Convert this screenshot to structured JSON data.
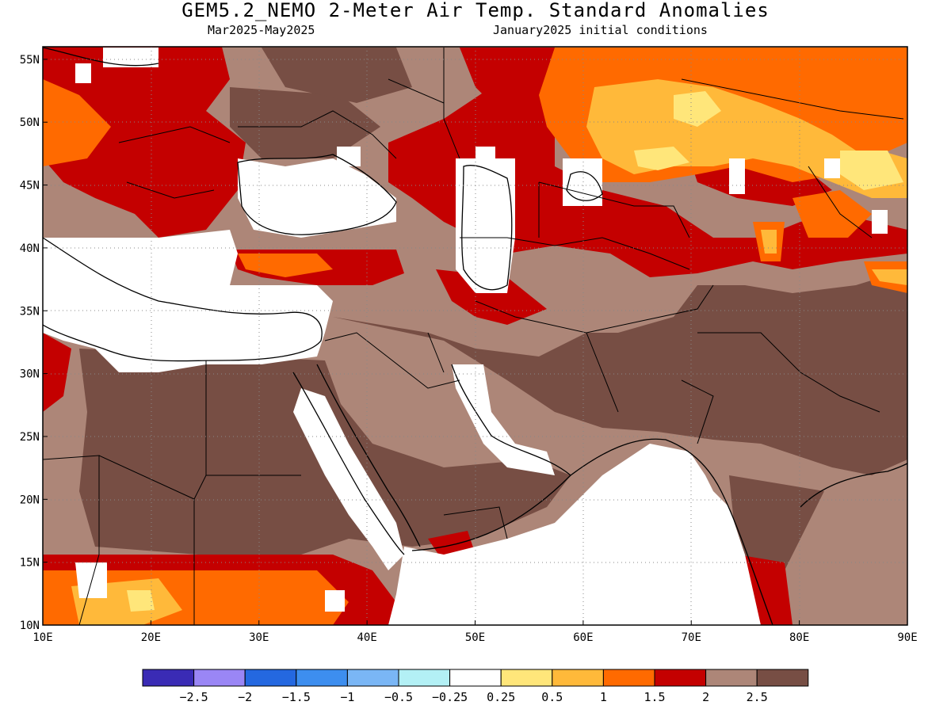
{
  "header": {
    "title": "GEM5.2_NEMO 2-Meter Air Temp. Standard Anomalies",
    "period": "Mar2025-May2025",
    "init": "January2025 initial conditions"
  },
  "map": {
    "lon_range": [
      10,
      90
    ],
    "lat_range": [
      10,
      56
    ],
    "lon_ticks": [
      "10E",
      "20E",
      "30E",
      "40E",
      "50E",
      "60E",
      "70E",
      "80E",
      "90E"
    ],
    "lat_ticks": [
      "10N",
      "15N",
      "20N",
      "25N",
      "30N",
      "35N",
      "40N",
      "45N",
      "50N",
      "55N"
    ],
    "grid": true,
    "palette": {
      "lt_-2.5": "#3a2bb5",
      "-2.5_-2": "#9a86f5",
      "-2_-1.5": "#2468e0",
      "-1.5_-1": "#3d8eef",
      "-1_-0.5": "#7ab6f5",
      "-0.5_-0.25": "#b3f0f5",
      "neutral": "#ffffff",
      "0.25_0.5": "#ffe67a",
      "0.5_1": "#ffb93a",
      "1_1.5": "#ff6a00",
      "1.5_2": "#c40000",
      "2_2.5": "#ad8678",
      "gt_2.5": "#774e44"
    }
  },
  "legend": {
    "colors": [
      "#3a2bb5",
      "#9a86f5",
      "#2468e0",
      "#3d8eef",
      "#7ab6f5",
      "#b3f0f5",
      "#ffffff",
      "#ffe67a",
      "#ffb93a",
      "#ff6a00",
      "#c40000",
      "#ad8678",
      "#774e44"
    ],
    "labels": [
      "-2.5",
      "-2",
      "-1.5",
      "-1",
      "-0.5",
      "-0.25",
      "0.25",
      "0.5",
      "1",
      "1.5",
      "2",
      "2.5"
    ]
  }
}
